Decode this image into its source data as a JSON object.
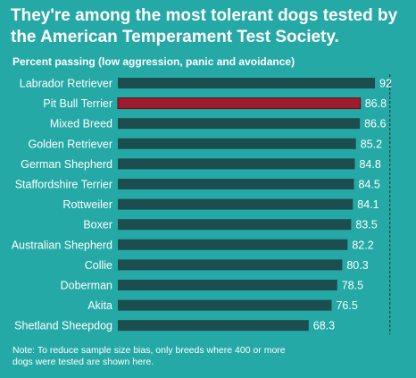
{
  "chart_data": {
    "type": "bar",
    "orientation": "horizontal",
    "title": "They're among the most tolerant dogs tested by the American Temperament Test Society.",
    "subtitle": "Percent passing (low aggression, panic and avoidance)",
    "categories": [
      "Labrador Retriever",
      "Pit Bull Terrier",
      "Mixed Breed",
      "Golden Retriever",
      "German Shepherd",
      "Staffordshire Terrier",
      "Rottweiler",
      "Boxer",
      "Australian Shepherd",
      "Collie",
      "Doberman",
      "Akita",
      "Shetland Sheepdog"
    ],
    "values": [
      92,
      86.8,
      86.6,
      85.2,
      84.8,
      84.5,
      84.1,
      83.5,
      82.2,
      80.3,
      78.5,
      76.5,
      68.3
    ],
    "value_labels": [
      "92",
      "86.8",
      "86.6",
      "85.2",
      "84.8",
      "84.5",
      "84.1",
      "83.5",
      "82.2",
      "80.3",
      "78.5",
      "76.5",
      "68.3"
    ],
    "highlight_category": "Pit Bull Terrier",
    "reference_line": 86.8,
    "xlim": [
      0,
      92
    ],
    "grid": false,
    "legend": "none",
    "colors": {
      "background": "#25A9A6",
      "bar": "#1C4D4F",
      "highlight": "#9E1B2C",
      "text": "#ffffff",
      "reference_line": "#2a3a3a"
    },
    "note": "Note: To reduce sample size bias, only breeds where 400 or more dogs were tested are shown here."
  }
}
